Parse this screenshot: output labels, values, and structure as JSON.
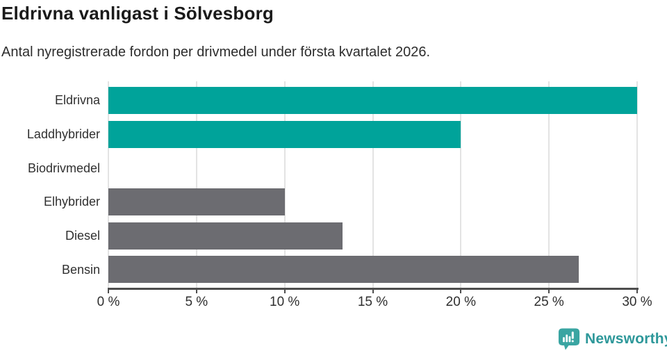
{
  "header": {
    "title": "Eldrivna vanligast i Sölvesborg",
    "subtitle": "Antal nyregistrerade fordon per drivmedel under första kvartalet 2026."
  },
  "chart_data": {
    "type": "bar",
    "orientation": "horizontal",
    "title": "Eldrivna vanligast i Sölvesborg",
    "subtitle": "Antal nyregistrerade fordon per drivmedel under första kvartalet 2026.",
    "categories": [
      "Eldrivna",
      "Laddhybrider",
      "Biodrivmedel",
      "Elhybrider",
      "Diesel",
      "Bensin"
    ],
    "values": [
      30,
      20,
      0,
      10,
      13.3,
      26.7
    ],
    "unit": "%",
    "xlabel": "",
    "ylabel": "",
    "xlim": [
      0,
      30
    ],
    "x_ticks": [
      0,
      5,
      10,
      15,
      20,
      25,
      30
    ],
    "x_tick_labels": [
      "0 %",
      "5 %",
      "10 %",
      "15 %",
      "20 %",
      "25 %",
      "30 %"
    ],
    "grid": "vertical-only",
    "legend_position": "none",
    "bar_colors": [
      "#00a39a",
      "#00a39a",
      "#00a39a",
      "#6c6c71",
      "#6c6c71",
      "#6c6c71"
    ]
  },
  "colors": {
    "teal_bar": "#00a39a",
    "gray_bar": "#6c6c71",
    "gridline": "#e3e3e3",
    "axis": "#4d4d4d",
    "title_text": "#1a1a1a",
    "label_text": "#303030",
    "brand_text": "#2e989a",
    "brand_icon": "#3aa5a2"
  },
  "footer": {
    "brand_name": "Newsworthy",
    "logo_icon": "newsworthy-bar-chart-bubble-icon"
  }
}
